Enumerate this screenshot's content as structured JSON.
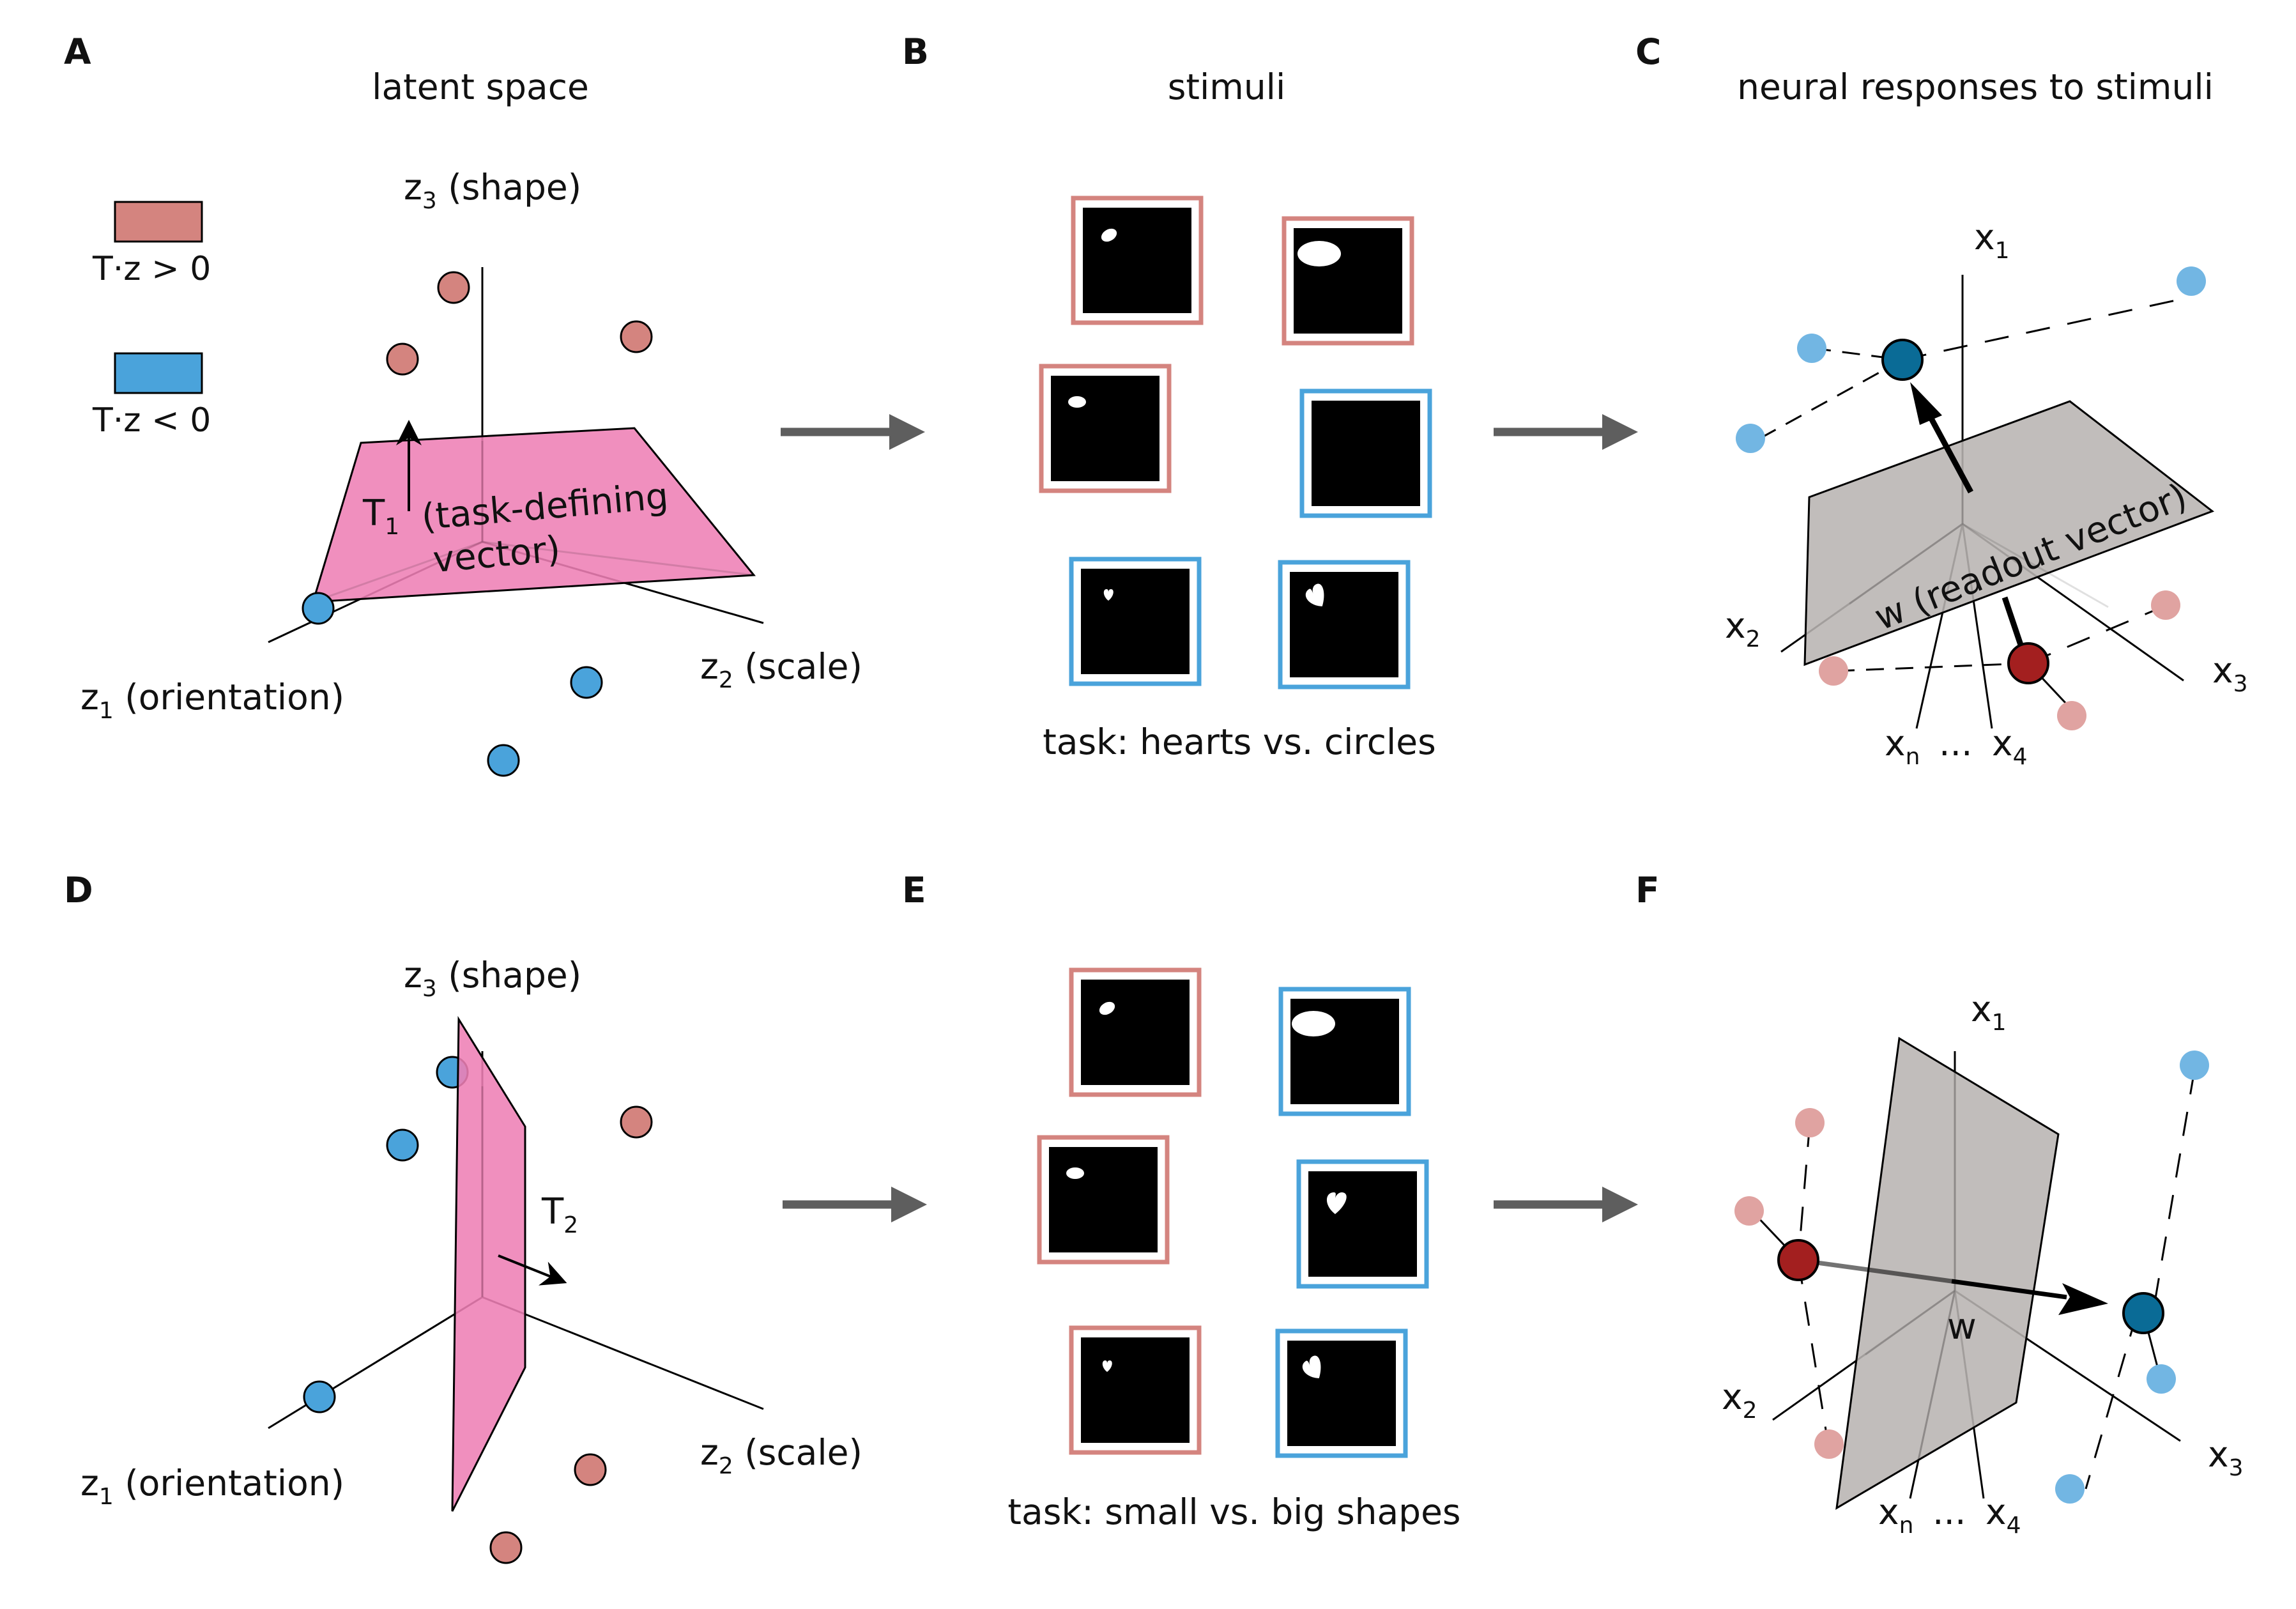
{
  "panels": {
    "A": {
      "label": "A",
      "title": "latent space"
    },
    "B": {
      "label": "B",
      "title": "stimuli"
    },
    "C": {
      "label": "C",
      "title": "neural responses to stimuli"
    },
    "D": {
      "label": "D"
    },
    "E": {
      "label": "E"
    },
    "F": {
      "label": "F"
    }
  },
  "legend": {
    "positive": {
      "text": "T·z > 0",
      "color": "#d4847f"
    },
    "negative": {
      "text": "T·z < 0",
      "color": "#4aa3db"
    }
  },
  "latent_axes": {
    "z1": {
      "main": "z",
      "sub": "1",
      "rest": " (orientation)"
    },
    "z2": {
      "main": "z",
      "sub": "2",
      "rest": " (scale)"
    },
    "z3": {
      "main": "z",
      "sub": "3",
      "rest": " (shape)"
    }
  },
  "task_vectors": {
    "T1": {
      "main": "T",
      "sub": "1",
      "line1": "(task-defining",
      "line2": "vector)"
    },
    "T2": {
      "main": "T",
      "sub": "2"
    }
  },
  "captions": {
    "top": "task: hearts vs. circles",
    "bottom": "task: small vs. big shapes"
  },
  "neural_axes": {
    "x1": {
      "main": "x",
      "sub": "1"
    },
    "x2": {
      "main": "x",
      "sub": "2"
    },
    "x3": {
      "main": "x",
      "sub": "3"
    },
    "x4": {
      "main": "x",
      "sub": "4"
    },
    "xn": {
      "main": "x",
      "sub": "n"
    },
    "dots": "..."
  },
  "readout": {
    "label_top": "w (readout vector)",
    "label_bottom": "w"
  },
  "colors": {
    "plane_pink": "#ee7fb5",
    "plane_gray": "#b8b4b2",
    "dark_red": "#a31f1f",
    "dark_blue": "#0a6b96",
    "light_red": "#e0a3a1",
    "light_blue": "#72b6e3",
    "frame_red": "#d4847f",
    "frame_blue": "#4aa3db",
    "arrow_gray": "#5e5e5e"
  },
  "stimuli": {
    "top_frames": [
      "red",
      "red",
      "red",
      "blue",
      "blue",
      "blue"
    ],
    "bottom_frames": [
      "red",
      "blue",
      "red",
      "blue",
      "red",
      "blue"
    ]
  }
}
